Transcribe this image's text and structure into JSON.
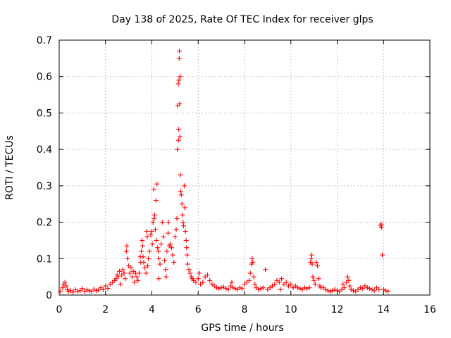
{
  "chart_data": {
    "type": "scatter",
    "title": "Day 138 of 2025, Rate Of TEC Index for receiver glps",
    "xlabel": "GPS time / hours",
    "ylabel": "ROTI / TECUs",
    "xlim": [
      0,
      16
    ],
    "ylim": [
      0,
      0.7
    ],
    "grid": true,
    "marker": "+",
    "color": "#ff0000",
    "xticks": [
      0,
      2,
      4,
      6,
      8,
      10,
      12,
      14,
      16
    ],
    "xtick_labels": [
      "0",
      "2",
      "4",
      "6",
      "8",
      "10",
      "12",
      "14",
      "16"
    ],
    "yticks": [
      0,
      0.1,
      0.2,
      0.3,
      0.4,
      0.5,
      0.6,
      0.7
    ],
    "ytick_labels": [
      "0",
      "0.1",
      "0.2",
      "0.3",
      "0.4",
      "0.5",
      "0.6",
      "0.7"
    ],
    "series": [
      {
        "name": "ROTI",
        "points": [
          [
            0.05,
            0.01
          ],
          [
            0.15,
            0.02
          ],
          [
            0.2,
            0.03
          ],
          [
            0.25,
            0.035
          ],
          [
            0.3,
            0.025
          ],
          [
            0.35,
            0.015
          ],
          [
            0.4,
            0.01
          ],
          [
            0.5,
            0.012
          ],
          [
            0.6,
            0.008
          ],
          [
            0.7,
            0.015
          ],
          [
            0.8,
            0.01
          ],
          [
            0.9,
            0.012
          ],
          [
            1.0,
            0.018
          ],
          [
            1.1,
            0.01
          ],
          [
            1.2,
            0.014
          ],
          [
            1.3,
            0.012
          ],
          [
            1.4,
            0.01
          ],
          [
            1.5,
            0.016
          ],
          [
            1.6,
            0.012
          ],
          [
            1.7,
            0.014
          ],
          [
            1.8,
            0.02
          ],
          [
            1.9,
            0.015
          ],
          [
            2.0,
            0.025
          ],
          [
            2.1,
            0.018
          ],
          [
            2.2,
            0.03
          ],
          [
            2.3,
            0.035
          ],
          [
            2.4,
            0.04
          ],
          [
            2.45,
            0.045
          ],
          [
            2.5,
            0.055
          ],
          [
            2.55,
            0.05
          ],
          [
            2.6,
            0.065
          ],
          [
            2.7,
            0.055
          ],
          [
            2.75,
            0.07
          ],
          [
            2.8,
            0.06
          ],
          [
            2.85,
            0.045
          ],
          [
            2.9,
            0.12
          ],
          [
            2.92,
            0.135
          ],
          [
            2.95,
            0.1
          ],
          [
            3.0,
            0.08
          ],
          [
            3.05,
            0.06
          ],
          [
            3.1,
            0.075
          ],
          [
            3.15,
            0.05
          ],
          [
            3.2,
            0.065
          ],
          [
            3.3,
            0.06
          ],
          [
            3.35,
            0.05
          ],
          [
            3.4,
            0.04
          ],
          [
            3.45,
            0.06
          ],
          [
            3.5,
            0.105
          ],
          [
            3.52,
            0.09
          ],
          [
            3.55,
            0.12
          ],
          [
            3.58,
            0.15
          ],
          [
            3.6,
            0.135
          ],
          [
            3.62,
            0.105
          ],
          [
            3.65,
            0.09
          ],
          [
            3.7,
            0.075
          ],
          [
            3.75,
            0.06
          ],
          [
            3.78,
            0.175
          ],
          [
            3.8,
            0.16
          ],
          [
            3.82,
            0.08
          ],
          [
            3.85,
            0.1
          ],
          [
            3.9,
            0.12
          ],
          [
            3.95,
            0.165
          ],
          [
            4.0,
            0.175
          ],
          [
            4.02,
            0.14
          ],
          [
            4.05,
            0.2
          ],
          [
            4.08,
            0.29
          ],
          [
            4.1,
            0.21
          ],
          [
            4.12,
            0.22
          ],
          [
            4.15,
            0.18
          ],
          [
            4.18,
            0.26
          ],
          [
            4.2,
            0.15
          ],
          [
            4.22,
            0.305
          ],
          [
            4.25,
            0.13
          ],
          [
            4.28,
            0.12
          ],
          [
            4.3,
            0.1
          ],
          [
            4.35,
            0.085
          ],
          [
            4.4,
            0.14
          ],
          [
            4.45,
            0.2
          ],
          [
            4.5,
            0.16
          ],
          [
            4.55,
            0.095
          ],
          [
            4.6,
            0.07
          ],
          [
            4.65,
            0.12
          ],
          [
            4.7,
            0.17
          ],
          [
            4.72,
            0.2
          ],
          [
            4.75,
            0.135
          ],
          [
            4.8,
            0.14
          ],
          [
            4.85,
            0.13
          ],
          [
            4.9,
            0.11
          ],
          [
            4.95,
            0.09
          ],
          [
            5.0,
            0.16
          ],
          [
            5.05,
            0.18
          ],
          [
            5.08,
            0.21
          ],
          [
            5.1,
            0.4
          ],
          [
            5.12,
            0.52
          ],
          [
            5.14,
            0.58
          ],
          [
            5.15,
            0.425
          ],
          [
            5.16,
            0.455
          ],
          [
            5.17,
            0.59
          ],
          [
            5.18,
            0.65
          ],
          [
            5.19,
            0.67
          ],
          [
            5.2,
            0.525
          ],
          [
            5.21,
            0.435
          ],
          [
            5.22,
            0.6
          ],
          [
            5.23,
            0.33
          ],
          [
            5.25,
            0.285
          ],
          [
            5.27,
            0.275
          ],
          [
            5.3,
            0.25
          ],
          [
            5.32,
            0.22
          ],
          [
            5.35,
            0.2
          ],
          [
            5.37,
            0.19
          ],
          [
            5.4,
            0.3
          ],
          [
            5.42,
            0.24
          ],
          [
            5.45,
            0.175
          ],
          [
            5.48,
            0.15
          ],
          [
            5.5,
            0.13
          ],
          [
            5.52,
            0.11
          ],
          [
            5.55,
            0.085
          ],
          [
            5.6,
            0.07
          ],
          [
            5.65,
            0.06
          ],
          [
            5.7,
            0.05
          ],
          [
            5.8,
            0.04
          ],
          [
            5.9,
            0.035
          ],
          [
            6.0,
            0.045
          ],
          [
            6.1,
            0.03
          ],
          [
            6.2,
            0.035
          ],
          [
            6.3,
            0.05
          ],
          [
            6.4,
            0.055
          ],
          [
            6.5,
            0.04
          ],
          [
            6.6,
            0.03
          ],
          [
            6.7,
            0.025
          ],
          [
            6.8,
            0.02
          ],
          [
            6.9,
            0.018
          ],
          [
            7.0,
            0.02
          ],
          [
            7.1,
            0.022
          ],
          [
            7.2,
            0.018
          ],
          [
            7.3,
            0.015
          ],
          [
            7.4,
            0.025
          ],
          [
            7.5,
            0.02
          ],
          [
            7.6,
            0.018
          ],
          [
            7.7,
            0.015
          ],
          [
            7.8,
            0.02
          ],
          [
            7.9,
            0.018
          ],
          [
            8.0,
            0.03
          ],
          [
            8.1,
            0.035
          ],
          [
            8.2,
            0.04
          ],
          [
            8.25,
            0.06
          ],
          [
            8.3,
            0.085
          ],
          [
            8.33,
            0.1
          ],
          [
            8.36,
            0.09
          ],
          [
            8.4,
            0.05
          ],
          [
            8.45,
            0.03
          ],
          [
            8.5,
            0.02
          ],
          [
            8.6,
            0.015
          ],
          [
            8.7,
            0.018
          ],
          [
            8.8,
            0.02
          ],
          [
            8.9,
            0.07
          ],
          [
            9.0,
            0.015
          ],
          [
            9.1,
            0.02
          ],
          [
            9.2,
            0.025
          ],
          [
            9.3,
            0.03
          ],
          [
            9.4,
            0.04
          ],
          [
            9.5,
            0.035
          ],
          [
            9.6,
            0.045
          ],
          [
            9.7,
            0.03
          ],
          [
            9.8,
            0.035
          ],
          [
            9.9,
            0.025
          ],
          [
            10.0,
            0.03
          ],
          [
            10.1,
            0.02
          ],
          [
            10.2,
            0.025
          ],
          [
            10.3,
            0.02
          ],
          [
            10.4,
            0.018
          ],
          [
            10.5,
            0.015
          ],
          [
            10.6,
            0.02
          ],
          [
            10.7,
            0.018
          ],
          [
            10.8,
            0.02
          ],
          [
            10.85,
            0.09
          ],
          [
            10.88,
            0.1
          ],
          [
            10.9,
            0.11
          ],
          [
            10.92,
            0.085
          ],
          [
            10.95,
            0.05
          ],
          [
            11.0,
            0.04
          ],
          [
            11.05,
            0.03
          ],
          [
            11.1,
            0.09
          ],
          [
            11.15,
            0.08
          ],
          [
            11.2,
            0.045
          ],
          [
            11.25,
            0.025
          ],
          [
            11.3,
            0.02
          ],
          [
            11.4,
            0.02
          ],
          [
            11.5,
            0.015
          ],
          [
            11.6,
            0.012
          ],
          [
            11.7,
            0.01
          ],
          [
            11.8,
            0.012
          ],
          [
            11.9,
            0.015
          ],
          [
            12.0,
            0.012
          ],
          [
            12.1,
            0.01
          ],
          [
            12.2,
            0.015
          ],
          [
            12.3,
            0.02
          ],
          [
            12.4,
            0.035
          ],
          [
            12.45,
            0.05
          ],
          [
            12.5,
            0.04
          ],
          [
            12.55,
            0.025
          ],
          [
            12.6,
            0.015
          ],
          [
            12.7,
            0.012
          ],
          [
            12.8,
            0.01
          ],
          [
            12.9,
            0.015
          ],
          [
            13.0,
            0.02
          ],
          [
            13.1,
            0.018
          ],
          [
            13.2,
            0.025
          ],
          [
            13.3,
            0.02
          ],
          [
            13.4,
            0.018
          ],
          [
            13.5,
            0.015
          ],
          [
            13.6,
            0.012
          ],
          [
            13.7,
            0.02
          ],
          [
            13.8,
            0.015
          ],
          [
            13.88,
            0.19
          ],
          [
            13.9,
            0.195
          ],
          [
            13.92,
            0.185
          ],
          [
            13.95,
            0.11
          ],
          [
            14.0,
            0.015
          ],
          [
            14.1,
            0.012
          ],
          [
            14.2,
            0.01
          ],
          [
            3.25,
            0.035
          ],
          [
            4.3,
            0.045
          ],
          [
            4.62,
            0.05
          ],
          [
            5.75,
            0.045
          ],
          [
            6.05,
            0.06
          ],
          [
            2.65,
            0.03
          ],
          [
            7.45,
            0.035
          ],
          [
            9.55,
            0.015
          ],
          [
            12.25,
            0.03
          ]
        ]
      }
    ]
  }
}
